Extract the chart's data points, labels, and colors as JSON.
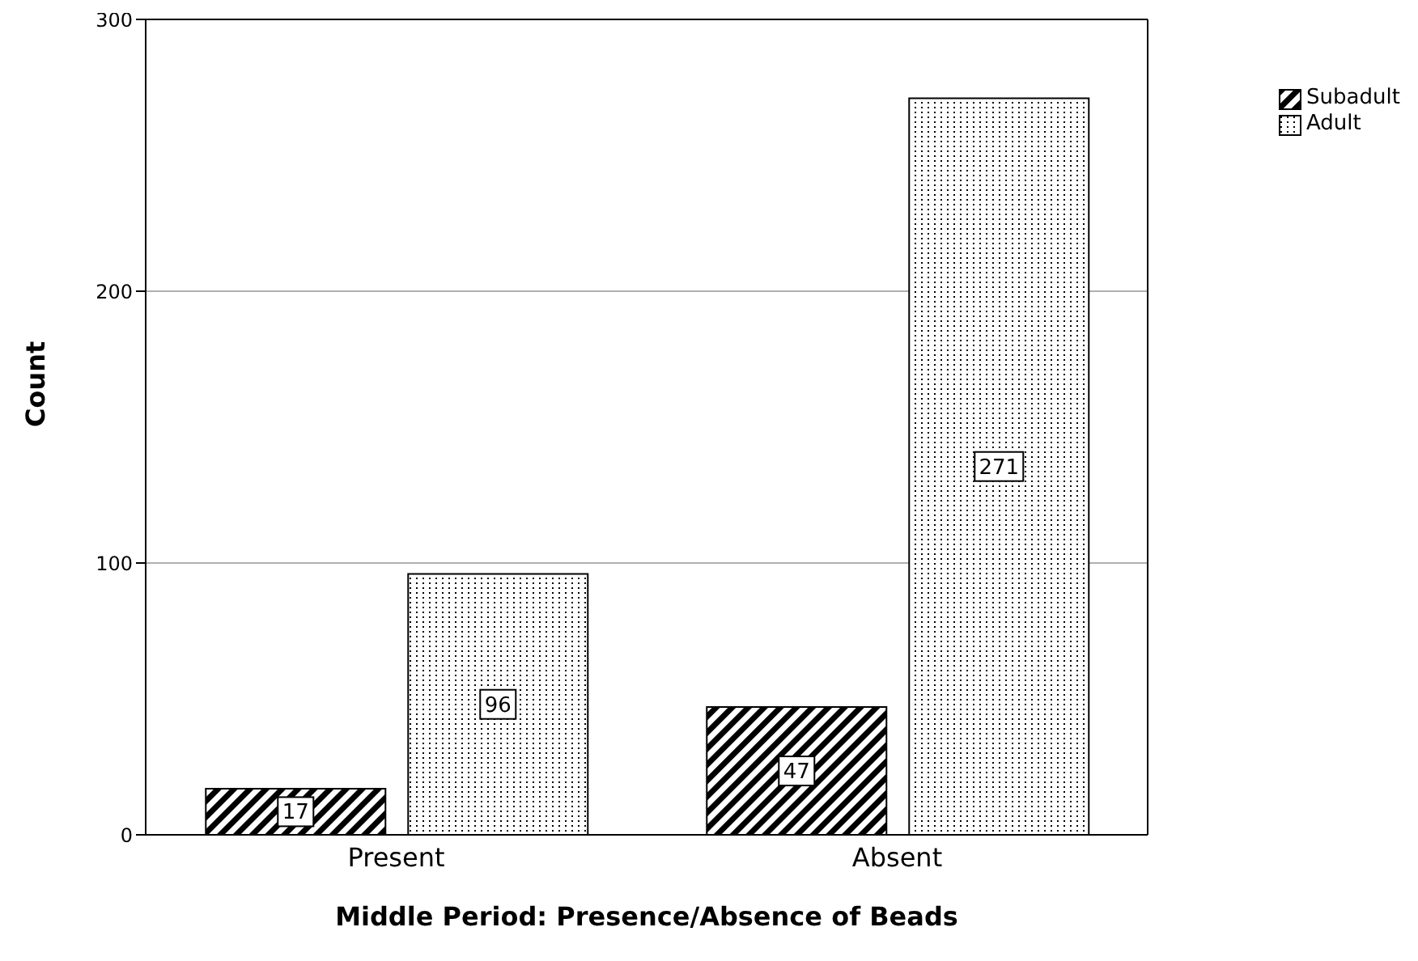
{
  "chart_data": {
    "type": "bar",
    "xlabel": "Middle Period: Presence/Absence of Beads",
    "ylabel": "Count",
    "categories": [
      "Present",
      "Absent"
    ],
    "series": [
      {
        "name": "Subadult",
        "color": "#000000",
        "values": [
          17,
          47
        ]
      },
      {
        "name": "Adult",
        "color": "#000000",
        "values": [
          96,
          271
        ]
      }
    ],
    "ylim": [
      0,
      300
    ],
    "yticks": [
      0,
      100,
      200,
      300
    ],
    "grid": "y",
    "legend": "top right",
    "data_labels": true
  }
}
